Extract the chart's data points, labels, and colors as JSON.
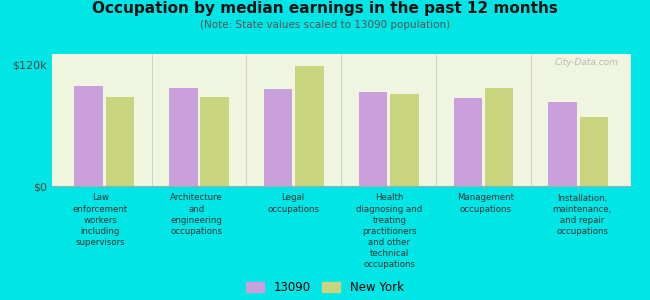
{
  "title": "Occupation by median earnings in the past 12 months",
  "subtitle": "(Note: State values scaled to 13090 population)",
  "background_color": "#00e5e5",
  "plot_bg_color": "#f0f5e0",
  "categories": [
    "Law\nenforcement\nworkers\nincluding\nsupervisors",
    "Architecture\nand\nengineering\noccupations",
    "Legal\noccupations",
    "Health\ndiagnosing and\ntreating\npractitioners\nand other\ntechnical\noccupations",
    "Management\noccupations",
    "Installation,\nmaintenance,\nand repair\noccupations"
  ],
  "values_13090": [
    98000,
    97000,
    96000,
    93000,
    87000,
    83000
  ],
  "values_ny": [
    88000,
    88000,
    118000,
    91000,
    97000,
    68000
  ],
  "color_13090": "#c9a0dc",
  "color_ny": "#c8d47e",
  "ylim": [
    0,
    130000
  ],
  "ytick_labels": [
    "$0",
    "$120k"
  ],
  "ytick_vals": [
    0,
    120000
  ],
  "legend_13090": "13090",
  "legend_ny": "New York",
  "watermark": "City-Data.com",
  "bar_width": 0.3,
  "bar_gap": 0.03
}
